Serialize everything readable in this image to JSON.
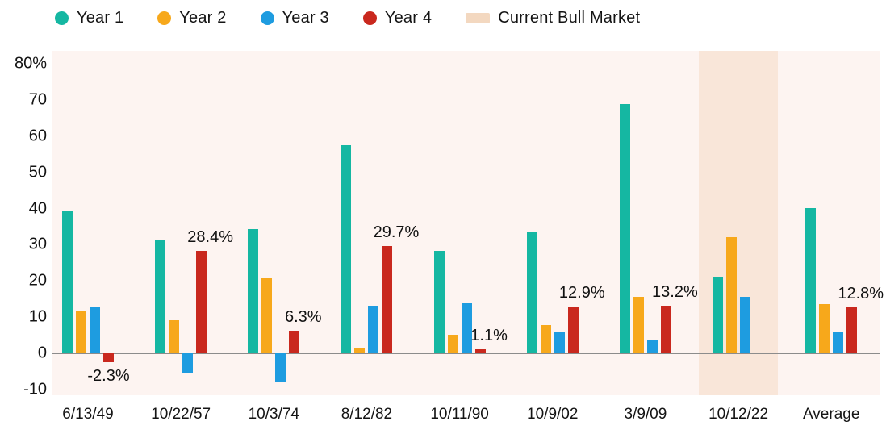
{
  "legend": {
    "items": [
      {
        "label": "Year 1",
        "color": "#15b7a2",
        "marker": "dot"
      },
      {
        "label": "Year 2",
        "color": "#f7a81b",
        "marker": "dot"
      },
      {
        "label": "Year 3",
        "color": "#1e9ce0",
        "marker": "dot"
      },
      {
        "label": "Year 4",
        "color": "#c9281e",
        "marker": "dot"
      },
      {
        "label": "Current Bull Market",
        "color": "#f3d8c0",
        "marker": "swatch"
      }
    ]
  },
  "chart_data": {
    "type": "bar",
    "title": "",
    "xlabel": "",
    "ylabel": "",
    "categories": [
      "6/13/49",
      "10/22/57",
      "10/3/74",
      "8/12/82",
      "10/11/90",
      "10/9/02",
      "3/9/09",
      "10/12/22",
      "Average"
    ],
    "series": [
      {
        "name": "Year 1",
        "color": "#15b7a2",
        "values": [
          39.4,
          31.2,
          34.4,
          57.5,
          28.4,
          33.4,
          68.8,
          21.2,
          40.2
        ]
      },
      {
        "name": "Year 2",
        "color": "#f7a81b",
        "values": [
          11.7,
          9.2,
          20.8,
          1.6,
          5.1,
          7.8,
          15.6,
          32.0,
          13.7
        ]
      },
      {
        "name": "Year 3",
        "color": "#1e9ce0",
        "values": [
          12.8,
          -5.6,
          -7.8,
          13.1,
          14.1,
          6.0,
          3.6,
          15.7,
          6.0
        ]
      },
      {
        "name": "Year 4",
        "color": "#c9281e",
        "values": [
          -2.3,
          28.4,
          6.3,
          29.7,
          1.1,
          12.9,
          13.2,
          null,
          12.8
        ]
      }
    ],
    "annotations": [
      {
        "category_index": 0,
        "series_index": 3,
        "text": "-2.3%",
        "position": "below"
      },
      {
        "category_index": 1,
        "series_index": 3,
        "text": "28.4%",
        "position": "above"
      },
      {
        "category_index": 2,
        "series_index": 3,
        "text": "6.3%",
        "position": "above"
      },
      {
        "category_index": 3,
        "series_index": 3,
        "text": "29.7%",
        "position": "above"
      },
      {
        "category_index": 4,
        "series_index": 3,
        "text": "1.1%",
        "position": "above"
      },
      {
        "category_index": 5,
        "series_index": 3,
        "text": "12.9%",
        "position": "above"
      },
      {
        "category_index": 6,
        "series_index": 3,
        "text": "13.2%",
        "position": "above"
      },
      {
        "category_index": 8,
        "series_index": 3,
        "text": "12.8%",
        "position": "above"
      }
    ],
    "highlight_band": {
      "category_index": 7,
      "label": "Current Bull Market",
      "color": "#f9e6d9"
    },
    "y_axis": {
      "tick_labels": [
        "80%",
        "70",
        "60",
        "50",
        "40",
        "30",
        "20",
        "10",
        "0",
        "-10"
      ],
      "tick_values": [
        80,
        70,
        60,
        50,
        40,
        30,
        20,
        10,
        0,
        -10
      ],
      "min": -11.5,
      "max": 83.5
    },
    "grid": false,
    "legend_position": "top",
    "plot_bg": "#fdf4f1",
    "axis_line_color": "#8c8c8c"
  }
}
